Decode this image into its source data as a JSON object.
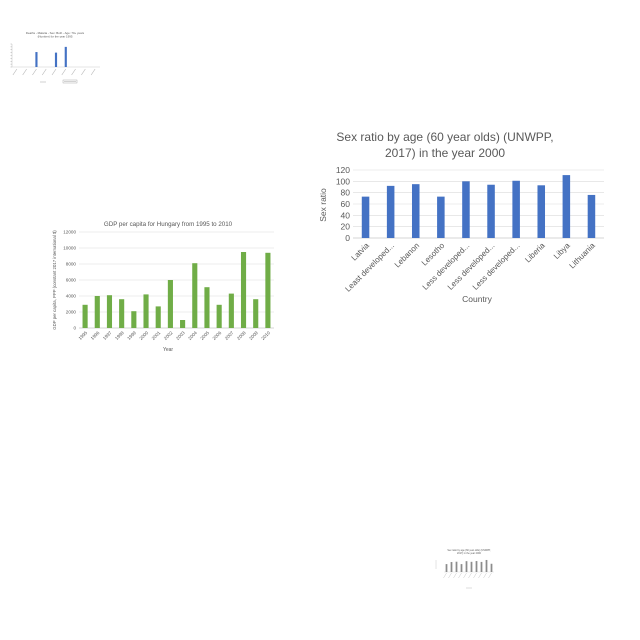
{
  "chart_data": [
    {
      "type": "bar",
      "title": "Deaths - Malaria - Sex: Both - Age: 70+ years (Number) for the year 1995",
      "xlabel": "",
      "ylabel": "",
      "categories": [
        "",
        "",
        "",
        "",
        "",
        "",
        "",
        "",
        ""
      ],
      "values": [
        0,
        0,
        26,
        0,
        25,
        35,
        0,
        0,
        0
      ],
      "ylim": [
        0,
        40
      ],
      "yticks": [
        0,
        5,
        10,
        15,
        20,
        25,
        30,
        35,
        40
      ],
      "legend": "bottom",
      "grid": false,
      "color": "#4472c4"
    },
    {
      "type": "bar",
      "title": "GDP per capita for Hungary from 1995 to 2010",
      "xlabel": "Year",
      "ylabel": "GDP per capita, PPP (constant 2017 international $)",
      "categories": [
        "1995",
        "1996",
        "1997",
        "1998",
        "1999",
        "2000",
        "2001",
        "2002",
        "2003",
        "2004",
        "2005",
        "2006",
        "2007",
        "2008",
        "2009",
        "2010"
      ],
      "values": [
        2900,
        4000,
        4100,
        3600,
        2100,
        4200,
        2700,
        6000,
        1000,
        8100,
        5100,
        2900,
        4300,
        9500,
        3600,
        9400
      ],
      "ylim": [
        0,
        12000
      ],
      "yticks": [
        "0",
        "2000",
        "4000",
        "6000",
        "8000",
        "10000",
        "12000"
      ],
      "grid": true,
      "color": "#70ad47"
    },
    {
      "type": "bar",
      "title_lines": [
        "Sex ratio by age (60 year olds) (UNWPP,",
        "2017) in the year 2000"
      ],
      "xlabel": "Country",
      "ylabel": "Sex ratio",
      "categories": [
        "Latvia",
        "Least developed...",
        "Lebanon",
        "Lesotho",
        "Less developed...",
        "Less developed...",
        "Less developed...",
        "Liberia",
        "Libya",
        "Lithuania"
      ],
      "values": [
        73,
        92,
        95,
        73,
        100,
        94,
        101,
        93,
        111,
        76
      ],
      "ylim": [
        0,
        120
      ],
      "yticks": [
        "0",
        "20",
        "40",
        "60",
        "80",
        "100",
        "120"
      ],
      "grid": true,
      "color": "#4472c4"
    },
    {
      "type": "bar",
      "title": "Sex ratio by age (60 year olds) (UNWPP, 2017) in the year 2000",
      "xlabel": "",
      "ylabel": "",
      "categories": [
        "",
        "",
        "",
        "",
        "",
        "",
        "",
        "",
        "",
        ""
      ],
      "values": [
        73,
        92,
        95,
        73,
        100,
        94,
        101,
        93,
        111,
        76
      ],
      "ylim": [
        0,
        120
      ],
      "grid": true,
      "color": "#8c8c8c"
    }
  ]
}
